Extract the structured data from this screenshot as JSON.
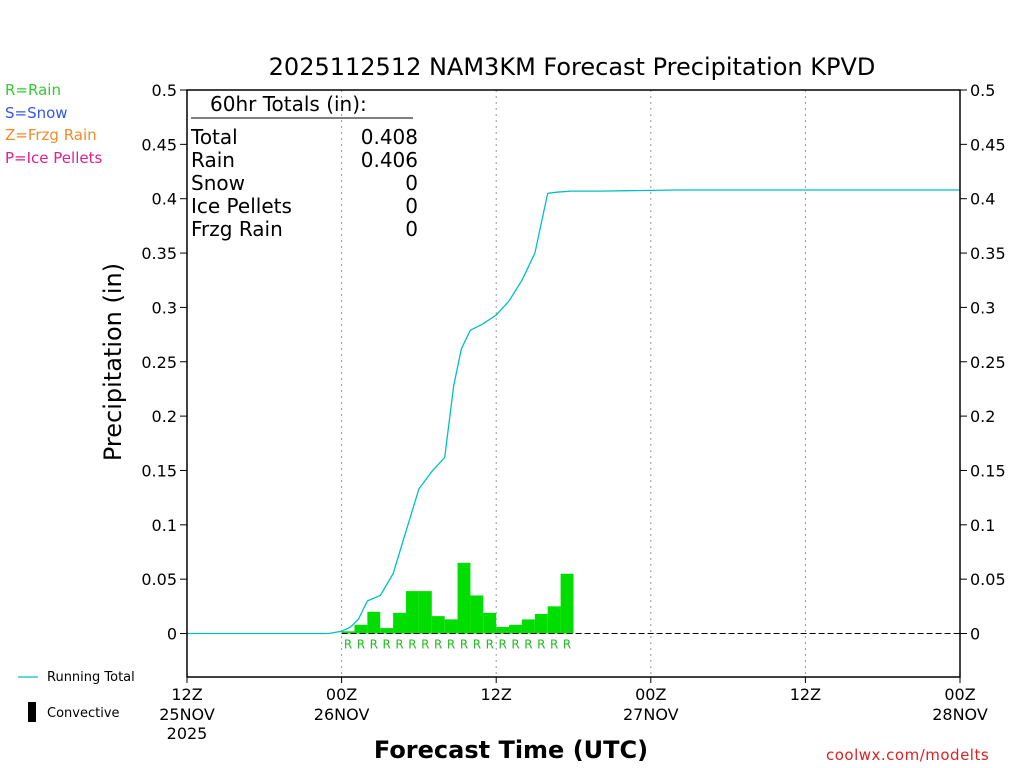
{
  "chart_data": {
    "type": "bar",
    "title": "2025112512 NAM3KM Forecast Precipitation KPVD",
    "xlabel": "Forecast Time (UTC)",
    "ylabel": "Precipitation (in)",
    "ylim": [
      -0.04,
      0.5
    ],
    "yticks": [
      0,
      0.05,
      0.1,
      0.15,
      0.2,
      0.25,
      0.3,
      0.35,
      0.4,
      0.45,
      0.5
    ],
    "ytick_labels": [
      "0",
      "0.05",
      "0.1",
      "0.15",
      "0.2",
      "0.25",
      "0.3",
      "0.35",
      "0.4",
      "0.45",
      "0.5"
    ],
    "xlim_hours": [
      0,
      60
    ],
    "xticks": [
      {
        "hour": 0,
        "label": "12Z",
        "date": "25NOV",
        "year": "2025"
      },
      {
        "hour": 12,
        "label": "00Z",
        "date": "26NOV",
        "year": ""
      },
      {
        "hour": 24,
        "label": "12Z",
        "date": "",
        "year": ""
      },
      {
        "hour": 36,
        "label": "00Z",
        "date": "27NOV",
        "year": ""
      },
      {
        "hour": 48,
        "label": "12Z",
        "date": "",
        "year": ""
      },
      {
        "hour": 60,
        "label": "00Z",
        "date": "28NOV",
        "year": ""
      }
    ],
    "grid": "vertical dotted at 12-hour intervals",
    "series": [
      {
        "name": "Hourly precipitation",
        "kind": "bars",
        "color": "#00dd00",
        "bar_hours": [
          12,
          13,
          14,
          15,
          16,
          17,
          18,
          19,
          20,
          21,
          22,
          23,
          24,
          25,
          26,
          27,
          28,
          29
        ],
        "values": [
          0.002,
          0.008,
          0.02,
          0.005,
          0.019,
          0.039,
          0.039,
          0.016,
          0.013,
          0.065,
          0.035,
          0.019,
          0.006,
          0.008,
          0.013,
          0.018,
          0.025,
          0.055
        ],
        "ptype": [
          "R",
          "R",
          "R",
          "R",
          "R",
          "R",
          "R",
          "R",
          "R",
          "R",
          "R",
          "R",
          "R",
          "R",
          "R",
          "R",
          "R",
          "R"
        ]
      },
      {
        "name": "Running Total",
        "kind": "line",
        "color": "#00c0c0",
        "x": [
          0,
          11,
          12,
          12.7,
          13.3,
          14,
          15,
          16,
          17,
          18,
          19,
          20,
          20.7,
          21.3,
          22,
          23,
          24,
          25,
          26,
          27,
          28,
          28.7,
          29.8,
          30.5,
          32,
          38,
          60
        ],
        "y": [
          0,
          0,
          0.002,
          0.006,
          0.013,
          0.03,
          0.035,
          0.055,
          0.094,
          0.133,
          0.149,
          0.162,
          0.228,
          0.262,
          0.279,
          0.285,
          0.293,
          0.306,
          0.325,
          0.35,
          0.405,
          0.406,
          0.407,
          0.407,
          0.407,
          0.408,
          0.408
        ]
      }
    ],
    "totals_box": {
      "heading": "60hr Totals (in):",
      "rows": [
        {
          "label": "Total",
          "value": "0.408"
        },
        {
          "label": "Rain",
          "value": "0.406"
        },
        {
          "label": "Snow",
          "value": "0"
        },
        {
          "label": "Ice Pellets",
          "value": "0"
        },
        {
          "label": "Frzg Rain",
          "value": "0"
        }
      ]
    }
  },
  "ptype_legend": [
    {
      "text": "R=Rain",
      "color": "#33cc33"
    },
    {
      "text": "S=Snow",
      "color": "#3355ee"
    },
    {
      "text": "Z=Frzg Rain",
      "color": "#f08c28"
    },
    {
      "text": "P=Ice Pellets",
      "color": "#e0208c"
    }
  ],
  "bottom_legend": {
    "running_total": "Running Total",
    "convective": "Convective"
  },
  "watermark": "coolwx.com/modelts"
}
